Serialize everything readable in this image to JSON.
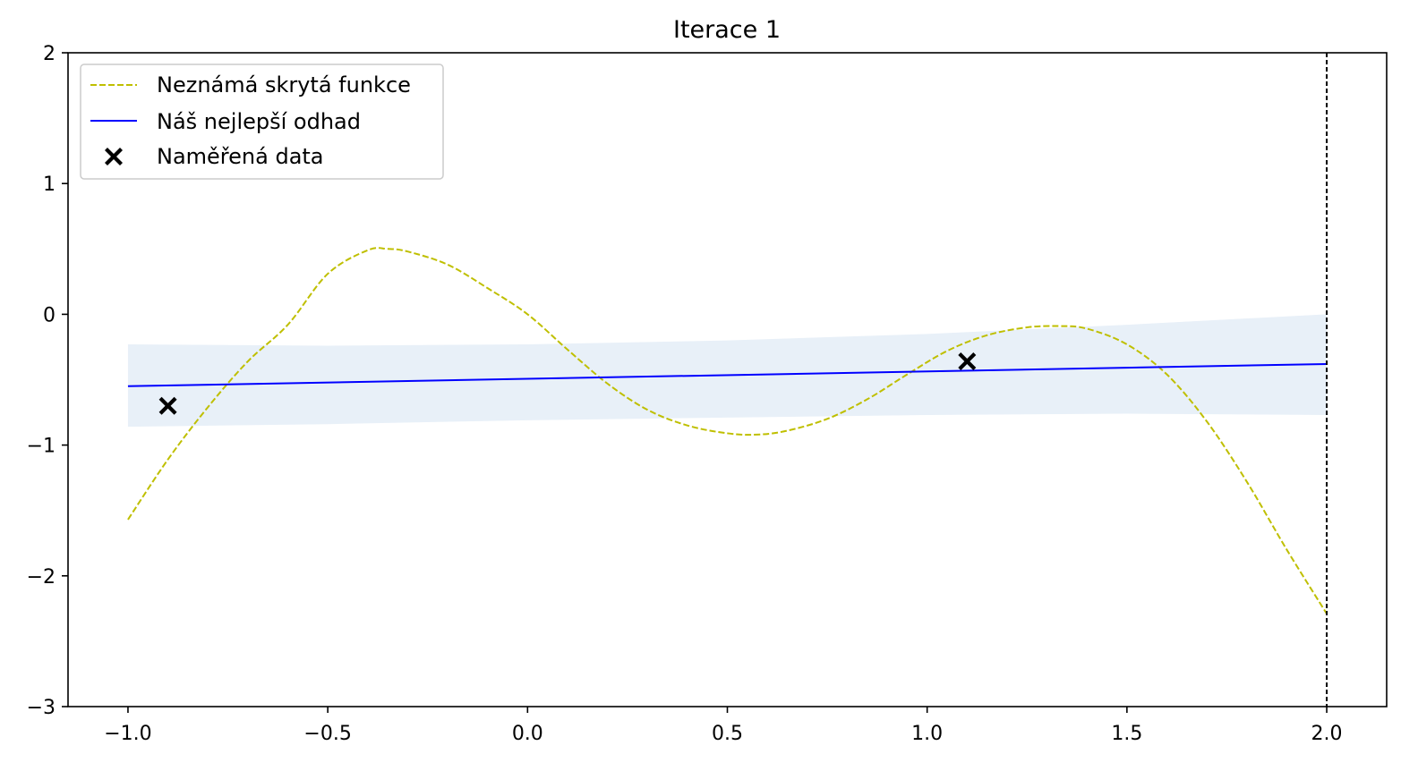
{
  "chart_data": {
    "type": "line",
    "title": "Iterace 1",
    "xlabel": "",
    "ylabel": "",
    "xlim": [
      -1.15,
      2.15
    ],
    "ylim": [
      -3,
      2
    ],
    "x_ticks": [
      -1.0,
      -0.5,
      0.0,
      0.5,
      1.0,
      1.5,
      2.0
    ],
    "x_tick_labels": [
      "−1.0",
      "−0.5",
      "0.0",
      "0.5",
      "1.0",
      "1.5",
      "2.0"
    ],
    "y_ticks": [
      -3,
      -2,
      -1,
      0,
      1,
      2
    ],
    "y_tick_labels": [
      "−3",
      "−2",
      "−1",
      "0",
      "1",
      "2"
    ],
    "grid": false,
    "legend_position": "top-left",
    "series": [
      {
        "name": "Neznámá skrytá funkce",
        "style": "dashed",
        "color": "#bfbf00",
        "x": [
          -1.0,
          -0.9,
          -0.8,
          -0.7,
          -0.6,
          -0.5,
          -0.4,
          -0.35,
          -0.3,
          -0.2,
          -0.1,
          0.0,
          0.1,
          0.2,
          0.3,
          0.4,
          0.5,
          0.575,
          0.65,
          0.75,
          0.85,
          0.95,
          1.05,
          1.15,
          1.25,
          1.33,
          1.4,
          1.5,
          1.6,
          1.7,
          1.8,
          1.9,
          2.0
        ],
        "y": [
          -1.57,
          -1.11,
          -0.71,
          -0.36,
          -0.08,
          0.31,
          0.49,
          0.5,
          0.48,
          0.38,
          0.2,
          0.0,
          -0.27,
          -0.53,
          -0.73,
          -0.85,
          -0.91,
          -0.92,
          -0.89,
          -0.8,
          -0.65,
          -0.46,
          -0.28,
          -0.16,
          -0.1,
          -0.09,
          -0.11,
          -0.23,
          -0.46,
          -0.82,
          -1.28,
          -1.8,
          -2.29
        ]
      },
      {
        "name": "Náš nejlepší odhad",
        "style": "solid",
        "color": "#0000ff",
        "x": [
          -1.0,
          2.0
        ],
        "y": [
          -0.55,
          -0.38
        ]
      },
      {
        "name": "Naměřená data",
        "style": "marker-x",
        "color": "#000000",
        "x": [
          -0.9,
          1.1
        ],
        "y": [
          -0.7,
          -0.36
        ]
      }
    ],
    "confidence_band": {
      "color": "#e8f0f8",
      "x": [
        -1.0,
        -0.5,
        0.0,
        0.5,
        1.0,
        1.5,
        2.0
      ],
      "upper": [
        -0.23,
        -0.24,
        -0.23,
        -0.2,
        -0.15,
        -0.08,
        0.0
      ],
      "lower": [
        -0.86,
        -0.84,
        -0.81,
        -0.79,
        -0.77,
        -0.76,
        -0.77
      ]
    },
    "vertical_line": {
      "x": 2.0,
      "style": "dashed",
      "color": "#000000"
    }
  }
}
